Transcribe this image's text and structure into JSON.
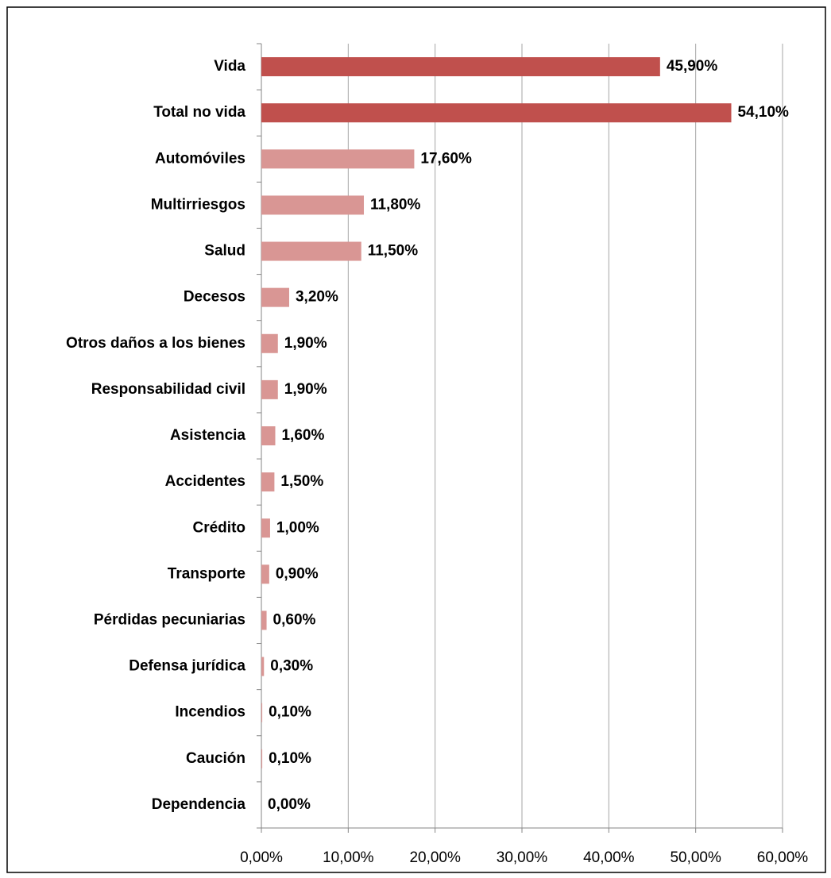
{
  "chart_data": {
    "type": "hbar",
    "categories": [
      "Vida",
      "Total no vida",
      "Automóviles",
      "Multirriesgos",
      "Salud",
      "Decesos",
      "Otros daños a los bienes",
      "Responsabilidad civil",
      "Asistencia",
      "Accidentes",
      "Crédito",
      "Transporte",
      "Pérdidas pecuniarias",
      "Defensa jurídica",
      "Incendios",
      "Caución",
      "Dependencia"
    ],
    "values": [
      45.9,
      54.1,
      17.6,
      11.8,
      11.5,
      3.2,
      1.9,
      1.9,
      1.6,
      1.5,
      1.0,
      0.9,
      0.6,
      0.3,
      0.1,
      0.1,
      0.0
    ],
    "value_labels": [
      "45,90%",
      "54,10%",
      "17,60%",
      "11,80%",
      "11,50%",
      "3,20%",
      "1,90%",
      "1,90%",
      "1,60%",
      "1,50%",
      "1,00%",
      "0,90%",
      "0,60%",
      "0,30%",
      "0,10%",
      "0,10%",
      "0,00%"
    ],
    "colors": [
      "#c0504d",
      "#c0504d",
      "#d99694",
      "#d99694",
      "#d99694",
      "#d99694",
      "#d99694",
      "#d99694",
      "#d99694",
      "#d99694",
      "#d99694",
      "#d99694",
      "#d99694",
      "#d99694",
      "#d99694",
      "#d99694",
      "#d99694"
    ],
    "xlim": [
      0,
      60
    ],
    "xticks": [
      {
        "value": 0,
        "label": "0,00%"
      },
      {
        "value": 10,
        "label": "10,00%"
      },
      {
        "value": 20,
        "label": "20,00%"
      },
      {
        "value": 30,
        "label": "30,00%"
      },
      {
        "value": 40,
        "label": "40,00%"
      },
      {
        "value": 50,
        "label": "50,00%"
      },
      {
        "value": 60,
        "label": "60,00%"
      }
    ],
    "grid": true
  }
}
